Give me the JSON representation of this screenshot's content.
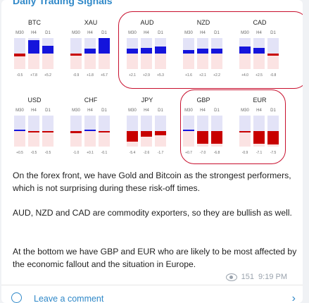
{
  "header": {
    "title": "Daily Trading Signals"
  },
  "timeframes": [
    "M30",
    "H4",
    "D1"
  ],
  "row1": [
    {
      "name": "BTC",
      "vals": [
        "-0.5",
        "+7.8",
        "+5.2"
      ],
      "bars": [
        -0.2,
        0.85,
        0.5
      ]
    },
    {
      "name": "XAU",
      "vals": [
        "-0.9",
        "+1.8",
        "+6.7"
      ],
      "bars": [
        -0.15,
        0.3,
        1.0
      ]
    },
    {
      "name": "AUD",
      "vals": [
        "+2.1",
        "+2.9",
        "+5.3"
      ],
      "bars": [
        0.3,
        0.35,
        0.45
      ]
    },
    {
      "name": "NZD",
      "vals": [
        "+1.6",
        "+2.1",
        "+2.2"
      ],
      "bars": [
        0.25,
        0.3,
        0.3
      ]
    },
    {
      "name": "CAD",
      "vals": [
        "+4.0",
        "+2.5",
        "-0.8"
      ],
      "bars": [
        0.45,
        0.35,
        -0.12
      ]
    }
  ],
  "row2": [
    {
      "name": "USD",
      "vals": [
        "+0.5",
        "-0.5",
        "-0.5"
      ],
      "bars": [
        0.08,
        -0.08,
        -0.08
      ]
    },
    {
      "name": "CHF",
      "vals": [
        "-1.0",
        "+0.1",
        "-0.1"
      ],
      "bars": [
        -0.15,
        0.05,
        -0.05
      ]
    },
    {
      "name": "JPY",
      "vals": [
        "-5.4",
        "-2.6",
        "-1.7"
      ],
      "bars": [
        -0.7,
        -0.35,
        -0.25
      ]
    },
    {
      "name": "GBP",
      "vals": [
        "+0.7",
        "-7.0",
        "-6.8"
      ],
      "bars": [
        0.1,
        -0.8,
        -0.8
      ]
    },
    {
      "name": "EUR",
      "vals": [
        "-0.9",
        "-7.1",
        "-7.5"
      ],
      "bars": [
        -0.1,
        -0.8,
        -0.85
      ]
    }
  ],
  "post": {
    "p1": "On the forex front, we have Gold and Bitcoin as the strongest performers, which is not surprising during these risk-off times.",
    "p2": "AUD, NZD and CAD are commodity exporters, so they are bullish as well.",
    "p3": "At the bottom we have GBP and EUR who are likely to be most affected by the economic fallout and the situation in Europe.",
    "views": "151",
    "time": "9:19 PM"
  },
  "footer": {
    "comment_label": "Leave a comment"
  },
  "colors": {
    "bull": "#1414dc",
    "bear": "#c80000",
    "highlight": "#c8102e",
    "link": "#2f88c8"
  }
}
